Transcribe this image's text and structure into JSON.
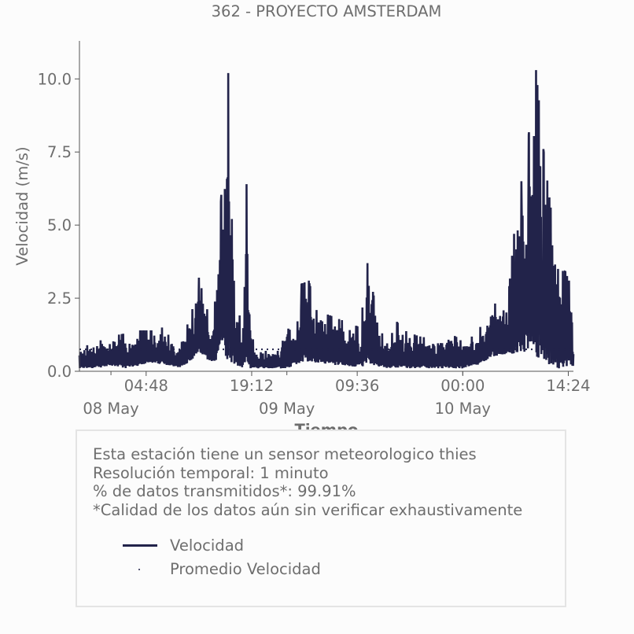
{
  "chart_data": {
    "type": "line",
    "title": "362 - PROYECTO AMSTERDAM",
    "xlabel": "Tiempo",
    "ylabel": "Velocidad (m/s)",
    "ylim": [
      0,
      11.3
    ],
    "yticks": [
      "0.0",
      "2.5",
      "5.0",
      "7.5",
      "10.0"
    ],
    "ytick_values": [
      0,
      2.5,
      5.0,
      7.5,
      10.0
    ],
    "x_range_hours": [
      -4.3,
      63.1
    ],
    "xticks": [
      {
        "time": "04:48",
        "hours": 4.8
      },
      {
        "time": "19:12",
        "hours": 19.2
      },
      {
        "time": "09:36",
        "hours": 33.6
      },
      {
        "time": "00:00",
        "hours": 48.0
      },
      {
        "time": "14:24",
        "hours": 62.4
      }
    ],
    "xticks_minor": [
      {
        "date": "08 May",
        "hours": 0
      },
      {
        "date": "09 May",
        "hours": 24
      },
      {
        "date": "10 May",
        "hours": 48
      }
    ],
    "grid": false,
    "series": [
      {
        "name": "Velocidad",
        "color": "#22234a",
        "style": "solid",
        "envelope_hours": [
          -4.3,
          -2,
          0,
          2,
          4,
          6,
          7,
          8,
          9,
          10,
          11,
          12,
          13,
          14,
          15,
          16,
          17,
          18,
          18.5,
          19,
          19.5,
          20,
          21,
          22,
          23,
          24,
          25,
          26,
          27,
          28,
          30,
          32,
          34,
          35,
          36,
          37,
          38,
          39,
          40,
          41,
          42,
          44,
          46,
          47,
          48,
          50,
          52,
          54,
          55,
          56,
          57,
          58,
          59,
          60,
          61,
          62,
          62.5,
          63.1
        ],
        "envelope_max": [
          0.8,
          1.0,
          1.2,
          1.3,
          1.4,
          1.4,
          1.5,
          1.2,
          1.0,
          1.3,
          2.0,
          3.2,
          2.2,
          1.6,
          5.8,
          10.2,
          2.3,
          1.6,
          6.4,
          1.4,
          1.0,
          0.8,
          0.7,
          0.7,
          0.7,
          1.5,
          1.3,
          3.0,
          3.1,
          2.1,
          1.9,
          1.7,
          1.5,
          3.7,
          2.4,
          1.3,
          1.1,
          1.7,
          1.4,
          1.3,
          1.2,
          1.1,
          1.3,
          1.2,
          1.0,
          1.3,
          2.4,
          2.0,
          4.7,
          6.5,
          8.1,
          10.3,
          7.6,
          5.6,
          3.5,
          3.4,
          3.1,
          1.0
        ],
        "envelope_min": [
          0.1,
          0.1,
          0.2,
          0.1,
          0.2,
          0.3,
          0.2,
          0.2,
          0.1,
          0.2,
          0.4,
          0.6,
          0.4,
          0.3,
          0.5,
          0.4,
          0.2,
          0.1,
          0.1,
          0.1,
          0.1,
          0.1,
          0.1,
          0.1,
          0.1,
          0.1,
          0.2,
          0.3,
          0.3,
          0.3,
          0.2,
          0.2,
          0.1,
          0.3,
          0.2,
          0.1,
          0.1,
          0.1,
          0.1,
          0.1,
          0.1,
          0.1,
          0.1,
          0.1,
          0.1,
          0.2,
          0.5,
          0.6,
          0.6,
          0.7,
          0.5,
          0.5,
          0.3,
          0.2,
          0.1,
          0.1,
          0.2,
          0.1
        ]
      },
      {
        "name": "Promedio Velocidad",
        "color": "#22234a",
        "style": "dotted",
        "value": 0.75
      }
    ],
    "legend_placement": "below"
  },
  "info": {
    "line1": "Esta estación tiene un sensor meteorologico thies",
    "line2": "Resolución temporal: 1 minuto",
    "line3": "% de datos transmitidos*: 99.91%",
    "line4": "*Calidad de los datos aún sin verificar exhaustivamente"
  },
  "colors": {
    "line": "#22234a",
    "text": "#6e6e6e",
    "axis": "#555555",
    "box_border": "#e4e4e4"
  }
}
